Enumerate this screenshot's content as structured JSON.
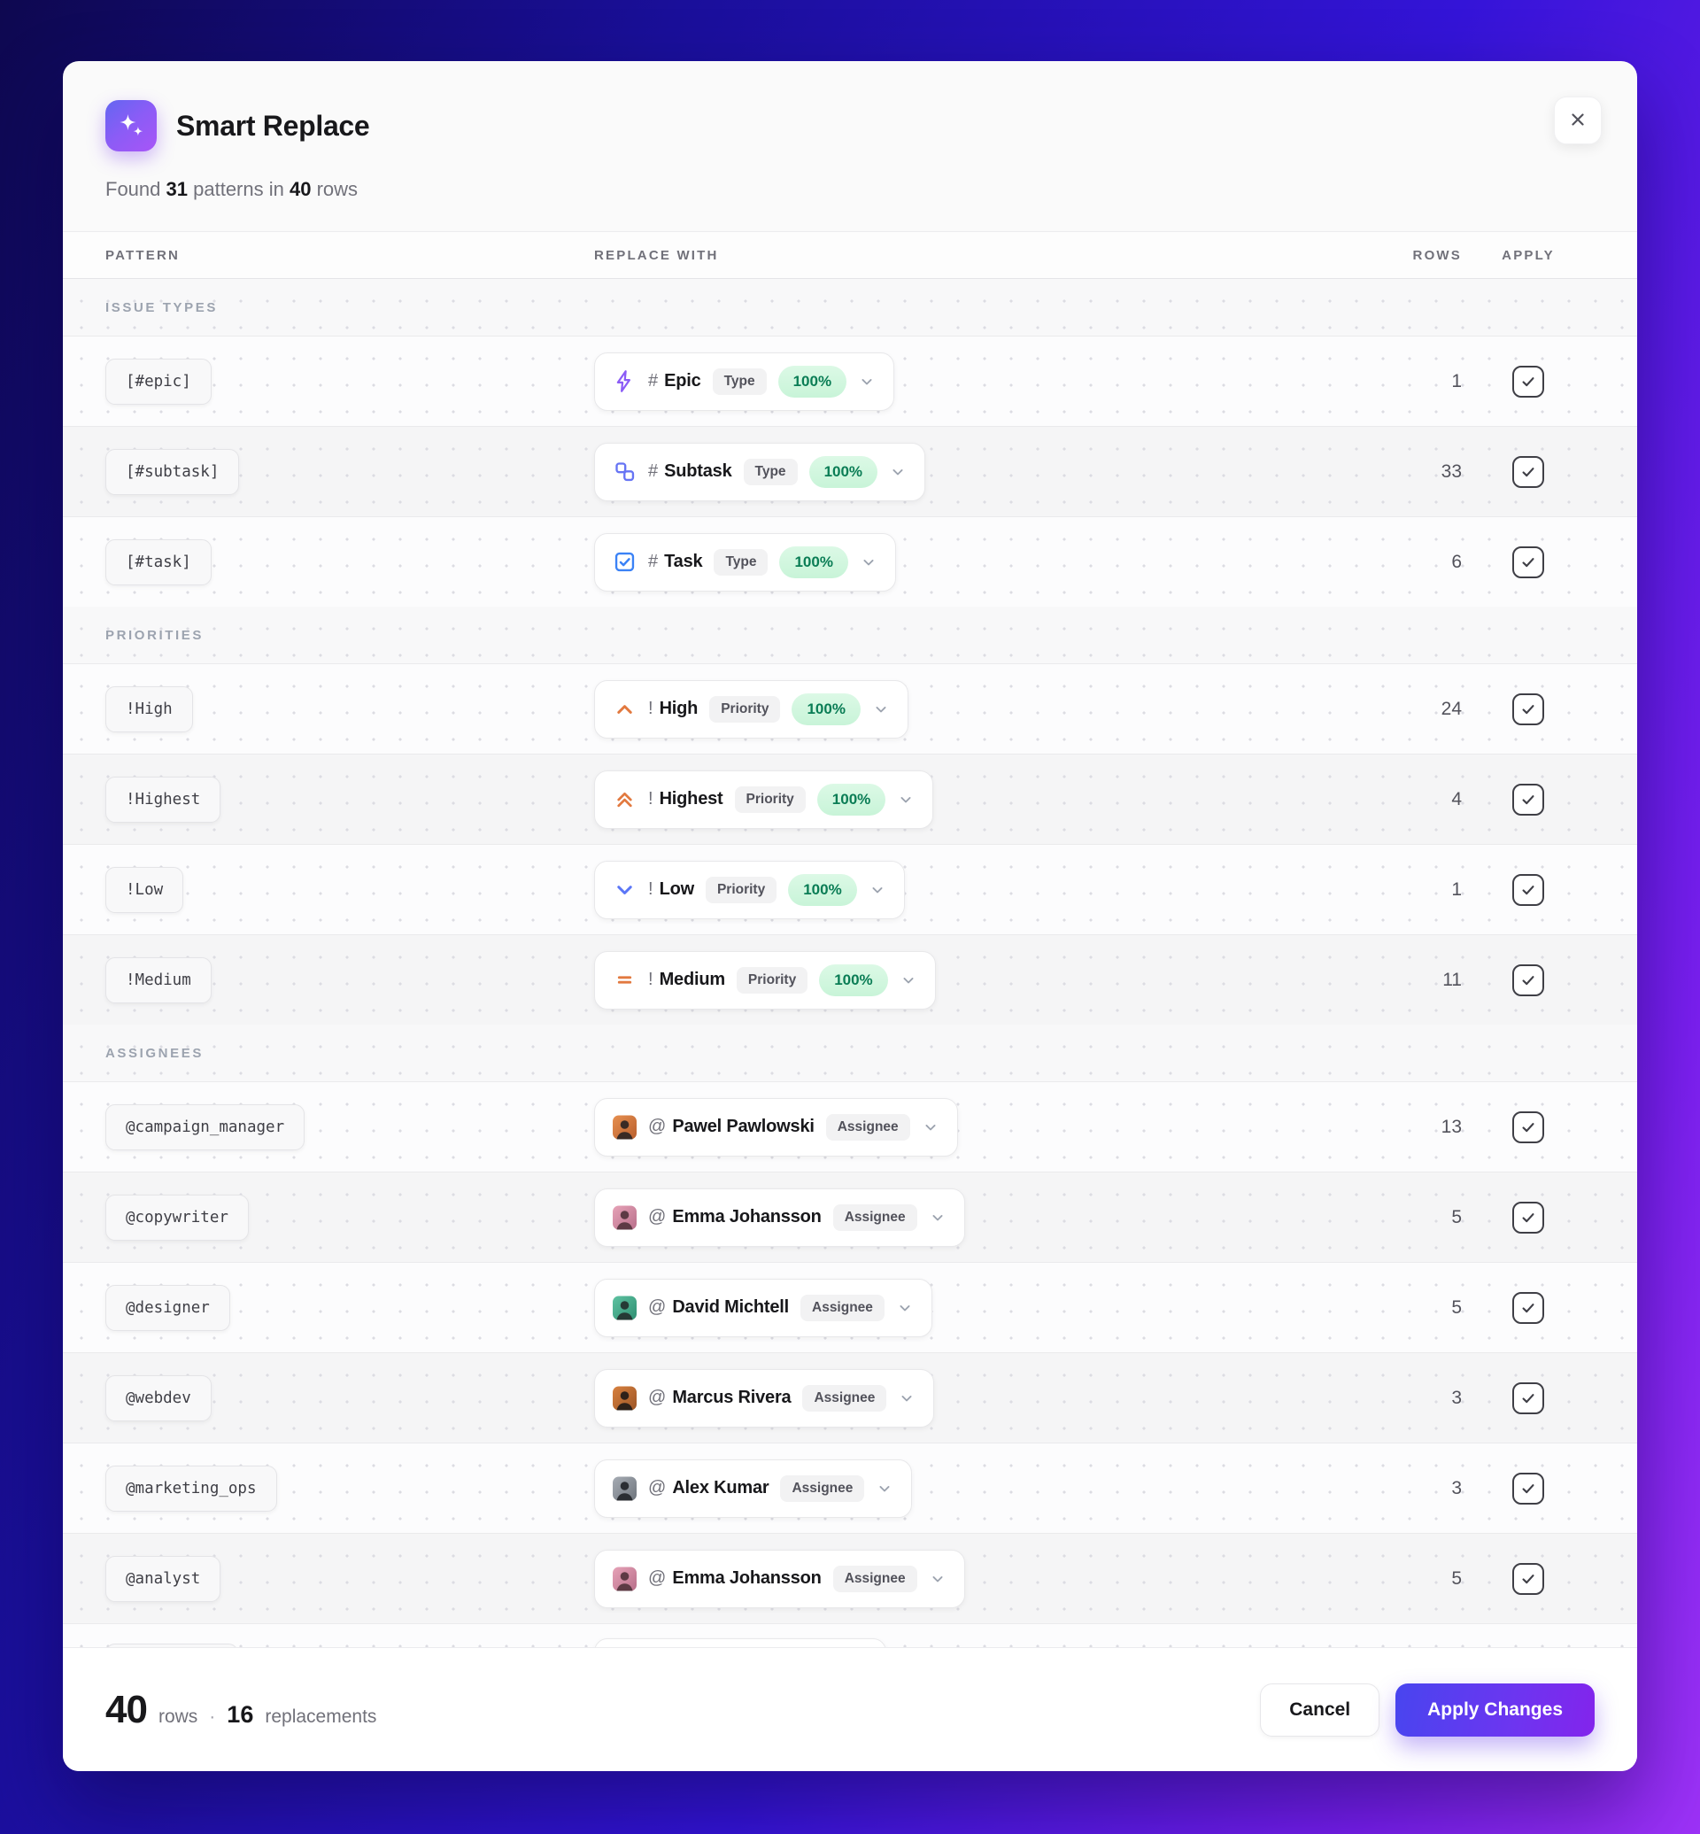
{
  "header": {
    "title": "Smart Replace",
    "found_label": "Found",
    "patterns_count": "31",
    "patterns_label": "patterns in",
    "rows_count": "40",
    "rows_label": "rows"
  },
  "table": {
    "columns": [
      "PATTERN",
      "REPLACE WITH",
      "ROWS",
      "APPLY"
    ]
  },
  "sections": [
    {
      "label": "ISSUE TYPES",
      "rows": [
        {
          "pattern": "[#epic]",
          "replace": {
            "icon": "epic",
            "prefix": "#",
            "name": "Epic",
            "badge": "Type",
            "confidence": "100%"
          },
          "rows": "1",
          "checked": true
        },
        {
          "pattern": "[#subtask]",
          "replace": {
            "icon": "subtask",
            "prefix": "#",
            "name": "Subtask",
            "badge": "Type",
            "confidence": "100%"
          },
          "rows": "33",
          "checked": true
        },
        {
          "pattern": "[#task]",
          "replace": {
            "icon": "task",
            "prefix": "#",
            "name": "Task",
            "badge": "Type",
            "confidence": "100%"
          },
          "rows": "6",
          "checked": true
        }
      ]
    },
    {
      "label": "PRIORITIES",
      "rows": [
        {
          "pattern": "!High",
          "replace": {
            "icon": "high",
            "prefix": "!",
            "name": "High",
            "badge": "Priority",
            "confidence": "100%"
          },
          "rows": "24",
          "checked": true
        },
        {
          "pattern": "!Highest",
          "replace": {
            "icon": "highest",
            "prefix": "!",
            "name": "Highest",
            "badge": "Priority",
            "confidence": "100%"
          },
          "rows": "4",
          "checked": true
        },
        {
          "pattern": "!Low",
          "replace": {
            "icon": "low",
            "prefix": "!",
            "name": "Low",
            "badge": "Priority",
            "confidence": "100%"
          },
          "rows": "1",
          "checked": true
        },
        {
          "pattern": "!Medium",
          "replace": {
            "icon": "medium",
            "prefix": "!",
            "name": "Medium",
            "badge": "Priority",
            "confidence": "100%"
          },
          "rows": "11",
          "checked": true
        }
      ]
    },
    {
      "label": "ASSIGNEES",
      "rows": [
        {
          "pattern": "@campaign_manager",
          "replace": {
            "avatar": {
              "id": "pawel",
              "c1": "#e79050",
              "c2": "#b95f2e",
              "fg": "#3a2b25"
            },
            "prefix": "@",
            "name": "Pawel Pawlowski",
            "badge": "Assignee"
          },
          "rows": "13",
          "checked": true
        },
        {
          "pattern": "@copywriter",
          "replace": {
            "avatar": {
              "id": "emma",
              "c1": "#e7a3b8",
              "c2": "#b86f8a",
              "fg": "#5d3a44"
            },
            "prefix": "@",
            "name": "Emma Johansson",
            "badge": "Assignee"
          },
          "rows": "5",
          "checked": true
        },
        {
          "pattern": "@designer",
          "replace": {
            "avatar": {
              "id": "david",
              "c1": "#5fc3a2",
              "c2": "#2f8f72",
              "fg": "#263a35"
            },
            "prefix": "@",
            "name": "David Michtell",
            "badge": "Assignee"
          },
          "rows": "5",
          "checked": true
        },
        {
          "pattern": "@webdev",
          "replace": {
            "avatar": {
              "id": "marcus",
              "c1": "#d8813f",
              "c2": "#9c5526",
              "fg": "#2e2119"
            },
            "prefix": "@",
            "name": "Marcus Rivera",
            "badge": "Assignee"
          },
          "rows": "3",
          "checked": true
        },
        {
          "pattern": "@marketing_ops",
          "replace": {
            "avatar": {
              "id": "alex",
              "c1": "#a7adb5",
              "c2": "#6e747c",
              "fg": "#2b2e33"
            },
            "prefix": "@",
            "name": "Alex Kumar",
            "badge": "Assignee"
          },
          "rows": "3",
          "checked": true
        },
        {
          "pattern": "@analyst",
          "replace": {
            "avatar": {
              "id": "emma2",
              "c1": "#e7a3b8",
              "c2": "#b86f8a",
              "fg": "#5d3a44"
            },
            "prefix": "@",
            "name": "Emma Johansson",
            "badge": "Assignee"
          },
          "rows": "5",
          "checked": true
        }
      ]
    }
  ],
  "footer": {
    "rows_value": "40",
    "rows_label": "rows",
    "separator": "·",
    "replacements_value": "16",
    "replacements_label": "replacements",
    "cancel_label": "Cancel",
    "apply_label": "Apply Changes"
  },
  "colors": {
    "accent_purple": "#8b5cf6",
    "confidence_green_bg": "#cdf4da",
    "confidence_green_text": "#0a7d55",
    "priority_orange": "#e2793f",
    "priority_low_blue": "#5b76f7",
    "type_blue": "#3b82f6",
    "subtask_indigo": "#6674f4",
    "background_gradient": [
      "#0e0850",
      "#3414d8",
      "#9d32f7"
    ]
  }
}
